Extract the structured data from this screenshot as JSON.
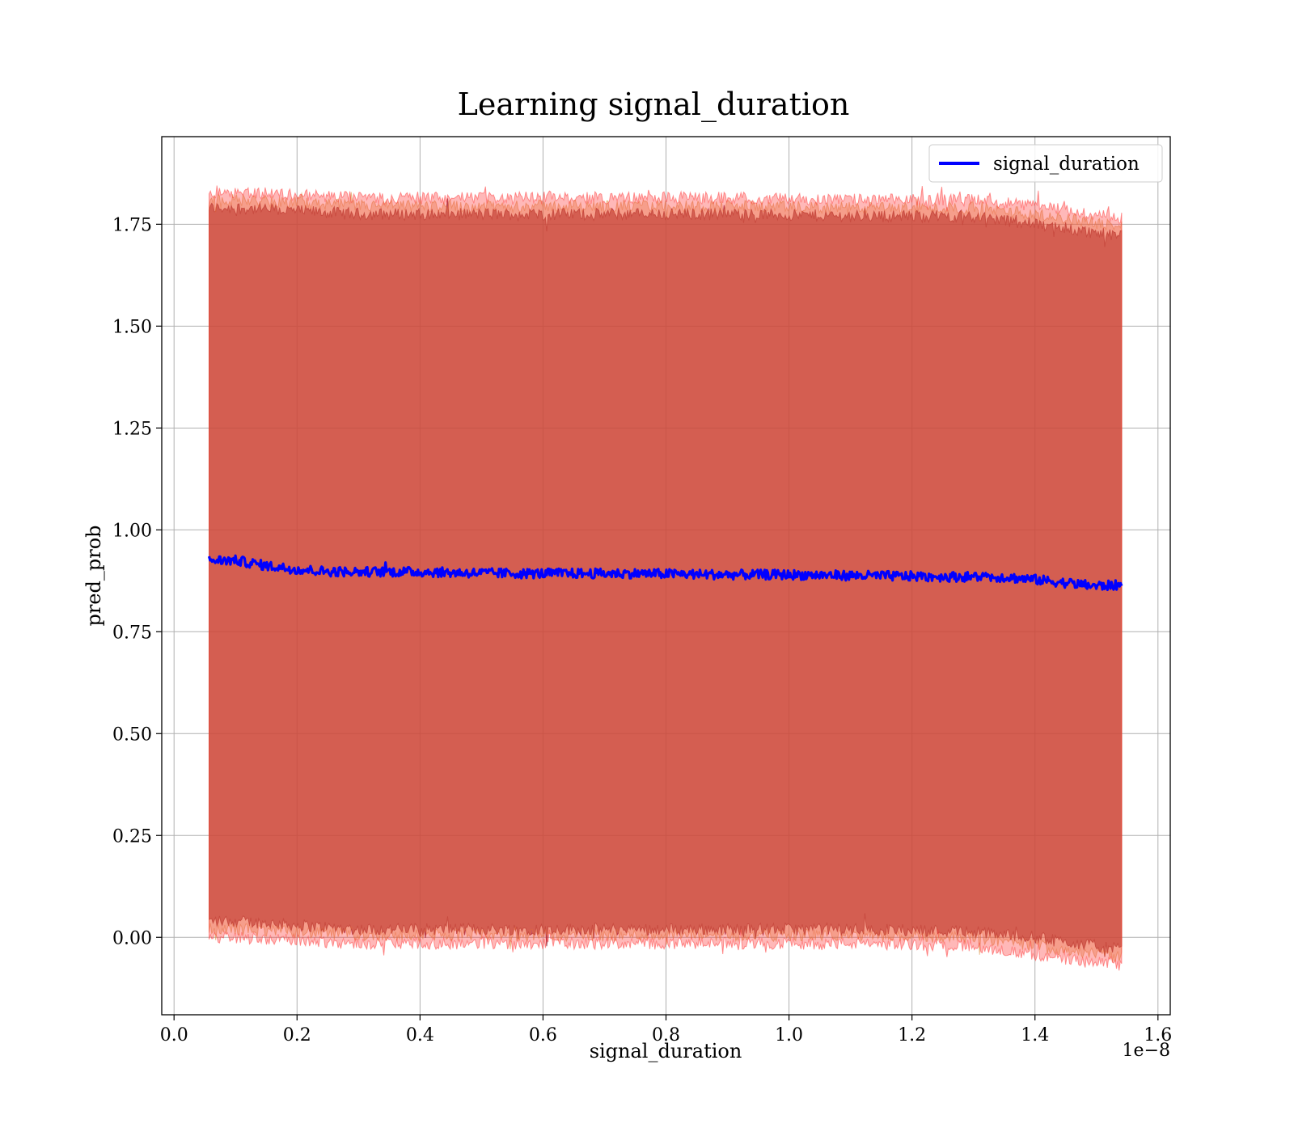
{
  "chart_data": {
    "type": "line",
    "title": "Learning signal_duration",
    "xlabel": "signal_duration",
    "ylabel": "pred_prob",
    "x_offset_text": "1e−8",
    "x_scale_exponent": -8,
    "xlim": [
      -0.02,
      1.62
    ],
    "ylim": [
      -0.19,
      1.965
    ],
    "x_ticks": [
      0.0,
      0.2,
      0.4,
      0.6,
      0.8,
      1.0,
      1.2,
      1.4,
      1.6
    ],
    "x_tick_labels": [
      "0.0",
      "0.2",
      "0.4",
      "0.6",
      "0.8",
      "1.0",
      "1.2",
      "1.4",
      "1.6"
    ],
    "y_ticks": [
      0.0,
      0.25,
      0.5,
      0.75,
      1.0,
      1.25,
      1.5,
      1.75
    ],
    "y_tick_labels": [
      "0.00",
      "0.25",
      "0.50",
      "0.75",
      "1.00",
      "1.25",
      "1.50",
      "1.75"
    ],
    "grid": true,
    "legend_position": "top-right",
    "x_data_range": [
      0.057,
      1.541
    ],
    "series": [
      {
        "name": "signal_duration",
        "color": "#0000ff",
        "x": [
          0.057,
          0.1,
          0.15,
          0.2,
          0.25,
          0.3,
          0.35,
          0.4,
          0.45,
          0.5,
          0.55,
          0.6,
          0.65,
          0.7,
          0.75,
          0.8,
          0.85,
          0.9,
          0.95,
          1.0,
          1.05,
          1.1,
          1.15,
          1.2,
          1.25,
          1.3,
          1.35,
          1.4,
          1.45,
          1.5,
          1.541
        ],
        "y": [
          0.925,
          0.925,
          0.912,
          0.903,
          0.898,
          0.897,
          0.897,
          0.897,
          0.895,
          0.894,
          0.893,
          0.893,
          0.893,
          0.893,
          0.893,
          0.892,
          0.891,
          0.89,
          0.89,
          0.89,
          0.889,
          0.888,
          0.887,
          0.886,
          0.885,
          0.885,
          0.884,
          0.878,
          0.87,
          0.862,
          0.865
        ],
        "noise": 0.012
      }
    ],
    "bands": [
      {
        "color": "#8b2c40",
        "opacity": 0.7,
        "x": [
          0.057,
          0.1,
          0.3,
          0.5,
          0.7,
          0.9,
          1.1,
          1.3,
          1.4,
          1.541
        ],
        "lower": [
          0.04,
          0.04,
          0.02,
          0.02,
          0.02,
          0.02,
          0.02,
          0.015,
          0.0,
          -0.03
        ],
        "upper": [
          1.79,
          1.79,
          1.775,
          1.775,
          1.775,
          1.775,
          1.77,
          1.77,
          1.75,
          1.72
        ]
      },
      {
        "color": "#d98c3a",
        "opacity": 0.35,
        "x": [
          0.057,
          0.1,
          0.3,
          0.5,
          0.7,
          0.9,
          1.1,
          1.3,
          1.4,
          1.541
        ],
        "lower": [
          0.02,
          0.02,
          0.005,
          0.005,
          0.005,
          0.005,
          0.005,
          0.0,
          -0.02,
          -0.05
        ],
        "upper": [
          1.81,
          1.81,
          1.795,
          1.795,
          1.795,
          1.795,
          1.79,
          1.79,
          1.775,
          1.745
        ]
      },
      {
        "color": "#ff3333",
        "opacity": 0.35,
        "x": [
          0.057,
          0.1,
          0.3,
          0.5,
          0.7,
          0.9,
          1.1,
          1.3,
          1.4,
          1.541
        ],
        "lower": [
          0.0,
          0.0,
          -0.015,
          -0.015,
          -0.015,
          -0.015,
          -0.015,
          -0.02,
          -0.045,
          -0.07
        ],
        "upper": [
          1.83,
          1.83,
          1.815,
          1.815,
          1.815,
          1.815,
          1.81,
          1.81,
          1.795,
          1.765
        ]
      }
    ]
  }
}
